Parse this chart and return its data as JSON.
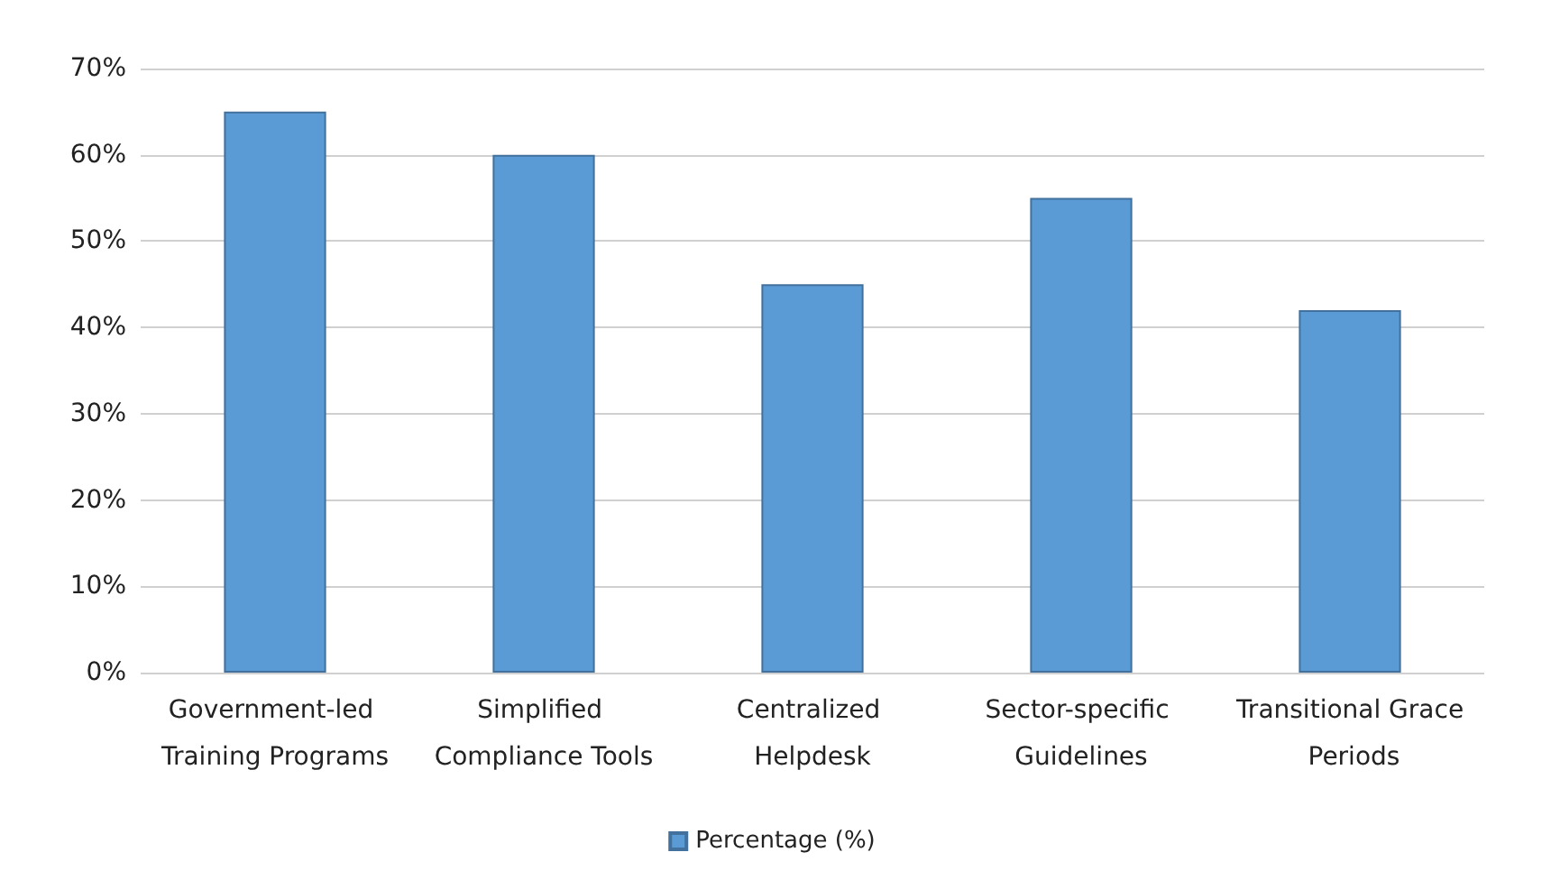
{
  "chart_data": {
    "type": "bar",
    "categories": [
      "Government-led Training Programs",
      "Simplified Compliance Tools",
      "Centralized Helpdesk",
      "Sector-specific Guidelines",
      "Transitional Grace Periods"
    ],
    "series": [
      {
        "name": "Percentage (%)",
        "color": "#5b9bd5",
        "values": [
          65,
          60,
          45,
          55,
          42
        ]
      }
    ],
    "ylim": [
      0,
      70
    ],
    "yticks": [
      {
        "value": 0,
        "label": "0%"
      },
      {
        "value": 10,
        "label": "10%"
      },
      {
        "value": 20,
        "label": "20%"
      },
      {
        "value": 30,
        "label": "30%"
      },
      {
        "value": 40,
        "label": "40%"
      },
      {
        "value": 50,
        "label": "50%"
      },
      {
        "value": 60,
        "label": "60%"
      },
      {
        "value": 70,
        "label": "70%"
      }
    ],
    "grid": "y",
    "legend": "bottom"
  }
}
